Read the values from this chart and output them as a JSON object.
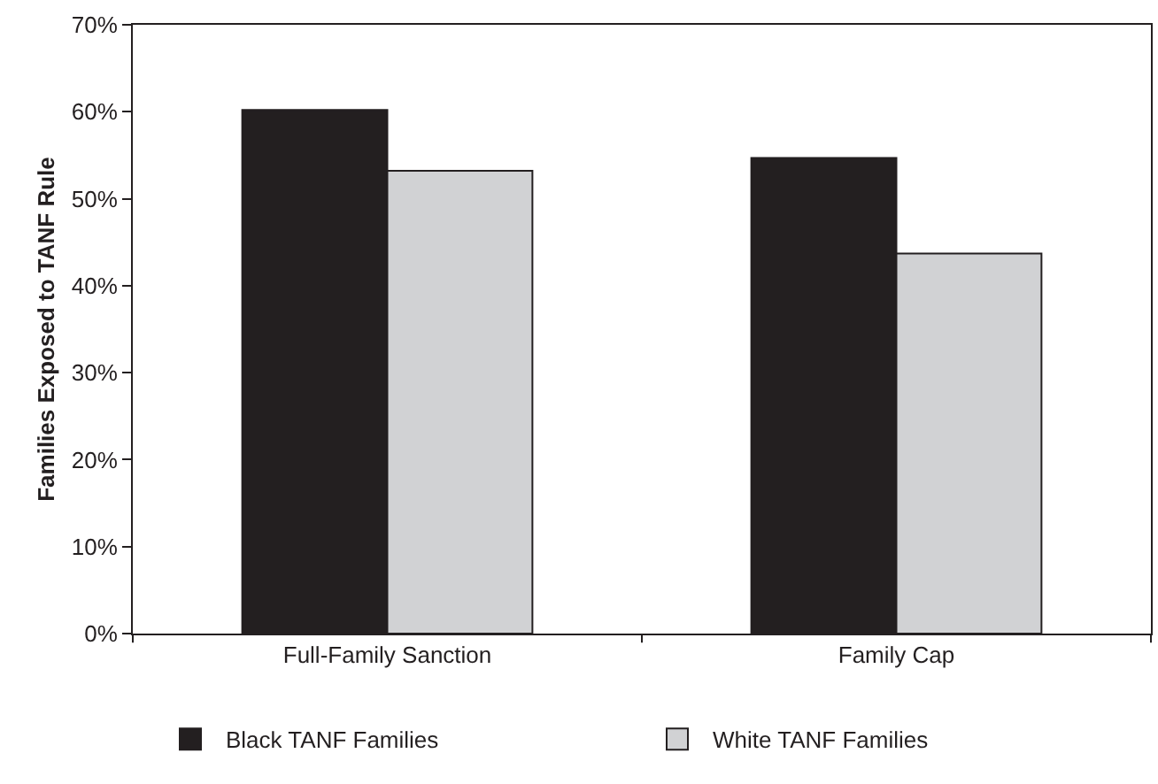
{
  "chart_data": {
    "type": "bar",
    "ylabel": "Families Exposed to TANF Rule",
    "categories": [
      "Full-Family Sanction",
      "Family Cap"
    ],
    "series": [
      {
        "name": "Black TANF Families",
        "color": "#231f20",
        "values": [
          0.602,
          0.547
        ]
      },
      {
        "name": "White TANF Families",
        "color": "#d1d2d4",
        "values": [
          0.532,
          0.437
        ]
      }
    ],
    "ylim": [
      0,
      0.7
    ],
    "yticks": [
      {
        "value": 0,
        "label": "0%"
      },
      {
        "value": 0.1,
        "label": "10%"
      },
      {
        "value": 0.2,
        "label": "20%"
      },
      {
        "value": 0.3,
        "label": "30%"
      },
      {
        "value": 0.4,
        "label": "40%"
      },
      {
        "value": 0.5,
        "label": "50%"
      },
      {
        "value": 0.6,
        "label": "60%"
      },
      {
        "value": 0.7,
        "label": "70%"
      }
    ],
    "grid": false,
    "legend": "bottom"
  }
}
